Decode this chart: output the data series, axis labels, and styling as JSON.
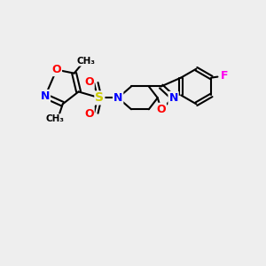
{
  "background_color": "#eeeeee",
  "bond_color": "#000000",
  "atom_colors": {
    "N": "#0000ff",
    "O": "#ff0000",
    "S": "#cccc00",
    "F": "#ff00ee",
    "C": "#000000"
  },
  "font_size_atom": 9,
  "font_size_small": 7.5
}
